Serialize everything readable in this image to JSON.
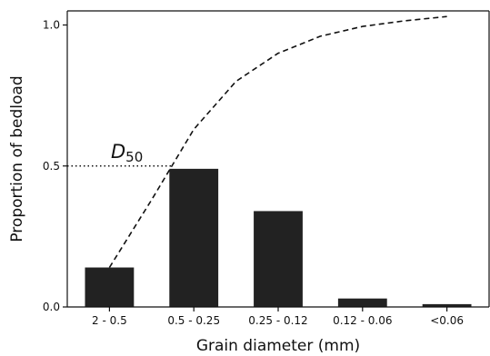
{
  "chart_data": {
    "type": "bar",
    "title": "",
    "xlabel": "Grain diameter (mm)",
    "ylabel": "Proportion of bedload",
    "categories": [
      "2 - 0.5",
      "0.5 - 0.25",
      "0.25 - 0.12",
      "0.12 - 0.06",
      "<0.06"
    ],
    "values": [
      0.14,
      0.49,
      0.34,
      0.03,
      0.01
    ],
    "ylim": [
      0,
      1.05
    ],
    "yticks": [
      0.0,
      0.5,
      1.0
    ],
    "ytick_labels": [
      "0.0",
      "0.5",
      "1.0"
    ],
    "bar_color": "#222222",
    "grid": false,
    "cumulative_curve": {
      "style": "dashed",
      "color": "#111111",
      "x": [
        0.0,
        0.5,
        1.0,
        1.5,
        2.0,
        2.5,
        3.0,
        3.5,
        4.0
      ],
      "y": [
        0.14,
        0.38,
        0.63,
        0.8,
        0.9,
        0.96,
        0.995,
        1.015,
        1.03
      ]
    },
    "annotation": {
      "main": "D",
      "subscript": "50",
      "y": 0.5,
      "style": "dotted"
    }
  }
}
